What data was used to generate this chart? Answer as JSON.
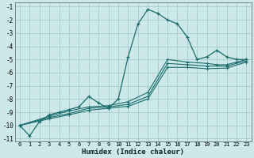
{
  "xlabel": "Humidex (Indice chaleur)",
  "bg_color": "#cce8e8",
  "grid_color": "#aacece",
  "line_color": "#1a6b6b",
  "xlim": [
    -0.5,
    23.5
  ],
  "ylim": [
    -11.2,
    -0.7
  ],
  "xticks": [
    0,
    1,
    2,
    3,
    4,
    5,
    6,
    7,
    8,
    9,
    10,
    11,
    12,
    13,
    14,
    15,
    16,
    17,
    18,
    19,
    20,
    21,
    22,
    23
  ],
  "yticks": [
    -1,
    -2,
    -3,
    -4,
    -5,
    -6,
    -7,
    -8,
    -9,
    -10,
    -11
  ],
  "series1_x": [
    0,
    1,
    2,
    3,
    4,
    5,
    6,
    7,
    8,
    9,
    10,
    11,
    12,
    13,
    14,
    15,
    16,
    17,
    18,
    19,
    20,
    21,
    22,
    23
  ],
  "series1_y": [
    -10.0,
    -10.8,
    -9.7,
    -9.2,
    -9.0,
    -8.8,
    -8.6,
    -7.8,
    -8.3,
    -8.7,
    -8.0,
    -4.8,
    -2.3,
    -1.2,
    -1.5,
    -2.0,
    -2.3,
    -3.3,
    -5.0,
    -4.8,
    -4.3,
    -4.8,
    -5.0,
    -5.0
  ],
  "series2_x": [
    0,
    3,
    5,
    7,
    9,
    11,
    13,
    15,
    17,
    19,
    20,
    21,
    22,
    23
  ],
  "series2_y": [
    -10.0,
    -9.3,
    -8.9,
    -8.6,
    -8.5,
    -8.2,
    -7.5,
    -5.0,
    -5.2,
    -5.3,
    -5.4,
    -5.4,
    -5.2,
    -5.0
  ],
  "series3_x": [
    0,
    3,
    5,
    7,
    9,
    11,
    13,
    15,
    17,
    19,
    21,
    23
  ],
  "series3_y": [
    -10.0,
    -9.4,
    -9.1,
    -8.7,
    -8.6,
    -8.4,
    -7.8,
    -5.3,
    -5.4,
    -5.5,
    -5.5,
    -5.1
  ],
  "series4_x": [
    0,
    3,
    5,
    7,
    9,
    11,
    13,
    15,
    17,
    19,
    21,
    23
  ],
  "series4_y": [
    -10.0,
    -9.5,
    -9.2,
    -8.85,
    -8.7,
    -8.55,
    -8.0,
    -5.6,
    -5.6,
    -5.7,
    -5.65,
    -5.2
  ]
}
